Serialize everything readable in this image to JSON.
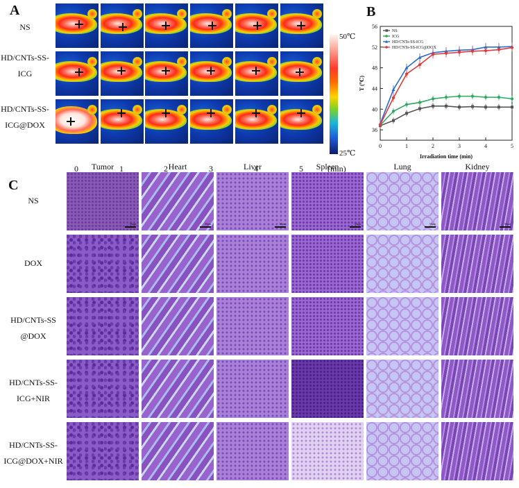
{
  "panelA": {
    "letter": "A",
    "row_labels": [
      {
        "line1": "NS",
        "line2": ""
      },
      {
        "line1": "HD/CNTs-SS-",
        "line2": "ICG"
      },
      {
        "line1": "HD/CNTs-SS-",
        "line2": "ICG@DOX"
      }
    ],
    "time_labels": [
      "0",
      "1",
      "2",
      "3",
      "4",
      "5"
    ],
    "time_unit": "(min)",
    "colorbar_max": "50℃",
    "colorbar_min": "25℃"
  },
  "panelB": {
    "letter": "B"
  },
  "chart_data": {
    "type": "line",
    "title": "",
    "xlabel": "Irradiation time (min)",
    "ylabel": "T (℃)",
    "xlim": [
      0,
      5
    ],
    "ylim": [
      34,
      56
    ],
    "xticks": [
      "0",
      "1",
      "2",
      "3",
      "4",
      "5"
    ],
    "yticks": [
      "36",
      "40",
      "44",
      "48",
      "52",
      "56"
    ],
    "legend_position": "top-left",
    "x": [
      0,
      0.5,
      1,
      1.5,
      2,
      2.5,
      3,
      3.5,
      4,
      4.5,
      5
    ],
    "series": [
      {
        "name": "NS",
        "color": "#555555",
        "marker": "square",
        "values": [
          36.8,
          37.8,
          39.2,
          40.1,
          40.6,
          40.6,
          40.4,
          40.5,
          40.4,
          40.4,
          40.4
        ]
      },
      {
        "name": "ICG",
        "color": "#2ca860",
        "marker": "circle",
        "values": [
          36.9,
          39.6,
          40.9,
          41.3,
          42.0,
          42.3,
          42.5,
          42.5,
          42.3,
          42.3,
          42.0
        ]
      },
      {
        "name": "HD/CNTs-SS-ICG",
        "color": "#2a6ad0",
        "marker": "triangle",
        "values": [
          37.2,
          43.8,
          48.0,
          50.0,
          50.9,
          51.2,
          51.4,
          51.5,
          52.0,
          52.0,
          52.1
        ]
      },
      {
        "name": "HD/CNTs-SS-ICG@DOX",
        "color": "#e03a3a",
        "marker": "circle",
        "values": [
          37.0,
          42.2,
          46.8,
          48.6,
          50.6,
          50.8,
          51.0,
          51.2,
          51.3,
          51.5,
          51.9
        ]
      }
    ]
  },
  "panelC": {
    "letter": "C",
    "col_headers": [
      "Tumor",
      "Heart",
      "Liver",
      "Spleen",
      "Lung",
      "Kidney"
    ],
    "row_labels": [
      {
        "line1": "NS",
        "line2": ""
      },
      {
        "line1": "DOX",
        "line2": ""
      },
      {
        "line1": "HD/CNTs-SS",
        "line2": "@DOX"
      },
      {
        "line1": "HD/CNTs-SS-",
        "line2": "ICG+NIR"
      },
      {
        "line1": "HD/CNTs-SS-",
        "line2": "ICG@DOX+NIR"
      }
    ],
    "scale_bar_label": "50μm"
  }
}
